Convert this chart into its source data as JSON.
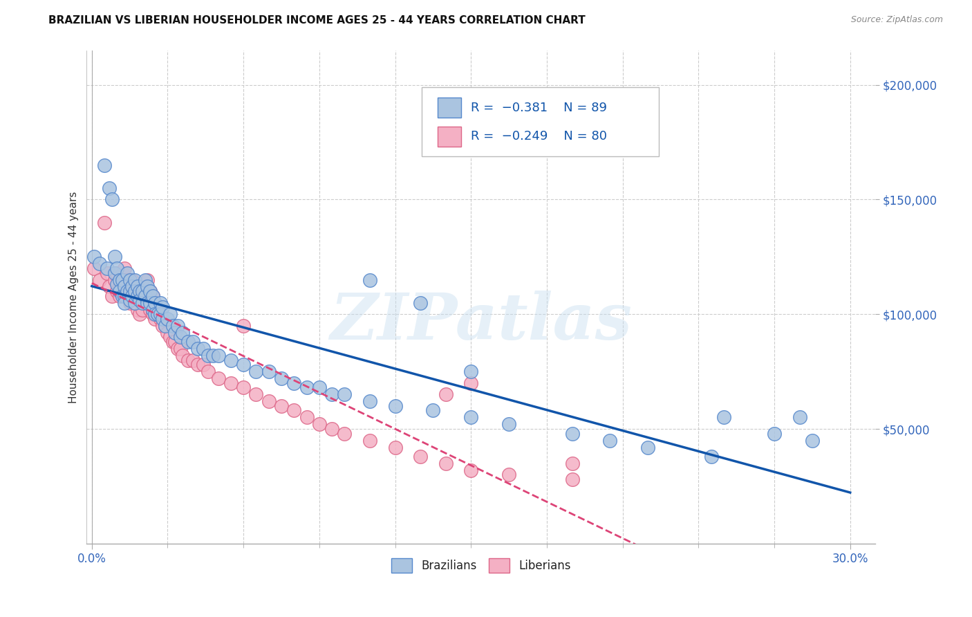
{
  "title": "BRAZILIAN VS LIBERIAN HOUSEHOLDER INCOME AGES 25 - 44 YEARS CORRELATION CHART",
  "source": "Source: ZipAtlas.com",
  "xlabel_major_ticks": [
    0.0,
    0.3
  ],
  "xlabel_major_labels": [
    "0.0%",
    "30.0%"
  ],
  "xlabel_minor_ticks": [
    0.03,
    0.06,
    0.09,
    0.12,
    0.15,
    0.18,
    0.21,
    0.24,
    0.27
  ],
  "ylabel": "Householder Income Ages 25 - 44 years",
  "ylabel_ticks_vals": [
    50000,
    100000,
    150000,
    200000
  ],
  "ylabel_ticks_labels": [
    "$50,000",
    "$100,000",
    "$150,000",
    "$200,000"
  ],
  "ylim": [
    0,
    215000
  ],
  "xlim": [
    -0.002,
    0.31
  ],
  "brazil_color": "#aac4e0",
  "brazil_edge": "#5588cc",
  "liberia_color": "#f4b0c4",
  "liberia_edge": "#dd6688",
  "brazil_line_color": "#1155aa",
  "liberia_line_color": "#dd4477",
  "legend_text_color": "#1155aa",
  "watermark": "ZIPatlas",
  "background_color": "#ffffff",
  "grid_color": "#cccccc",
  "brazil_scatter_x": [
    0.001,
    0.003,
    0.005,
    0.006,
    0.007,
    0.008,
    0.009,
    0.009,
    0.01,
    0.01,
    0.011,
    0.011,
    0.012,
    0.012,
    0.013,
    0.013,
    0.013,
    0.014,
    0.014,
    0.015,
    0.015,
    0.015,
    0.016,
    0.016,
    0.017,
    0.017,
    0.017,
    0.018,
    0.018,
    0.019,
    0.019,
    0.02,
    0.02,
    0.021,
    0.021,
    0.022,
    0.022,
    0.023,
    0.023,
    0.024,
    0.024,
    0.025,
    0.025,
    0.026,
    0.027,
    0.027,
    0.028,
    0.028,
    0.029,
    0.03,
    0.031,
    0.032,
    0.033,
    0.034,
    0.035,
    0.036,
    0.038,
    0.04,
    0.042,
    0.044,
    0.046,
    0.048,
    0.05,
    0.055,
    0.06,
    0.065,
    0.07,
    0.075,
    0.08,
    0.085,
    0.09,
    0.095,
    0.1,
    0.11,
    0.12,
    0.135,
    0.15,
    0.165,
    0.19,
    0.205,
    0.22,
    0.245,
    0.25,
    0.27,
    0.285,
    0.11,
    0.13,
    0.15,
    0.28
  ],
  "brazil_scatter_y": [
    125000,
    122000,
    165000,
    120000,
    155000,
    150000,
    125000,
    118000,
    120000,
    113000,
    115000,
    110000,
    115000,
    108000,
    112000,
    108000,
    105000,
    118000,
    110000,
    115000,
    110000,
    106000,
    112000,
    108000,
    115000,
    110000,
    105000,
    112000,
    108000,
    110000,
    106000,
    110000,
    105000,
    115000,
    108000,
    112000,
    105000,
    110000,
    105000,
    108000,
    102000,
    105000,
    100000,
    100000,
    105000,
    100000,
    98000,
    103000,
    95000,
    98000,
    100000,
    95000,
    92000,
    95000,
    90000,
    92000,
    88000,
    88000,
    85000,
    85000,
    82000,
    82000,
    82000,
    80000,
    78000,
    75000,
    75000,
    72000,
    70000,
    68000,
    68000,
    65000,
    65000,
    62000,
    60000,
    58000,
    55000,
    52000,
    48000,
    45000,
    42000,
    38000,
    55000,
    48000,
    45000,
    115000,
    105000,
    75000,
    55000
  ],
  "liberia_scatter_x": [
    0.001,
    0.003,
    0.005,
    0.006,
    0.007,
    0.008,
    0.009,
    0.01,
    0.01,
    0.011,
    0.011,
    0.012,
    0.012,
    0.013,
    0.013,
    0.014,
    0.014,
    0.015,
    0.015,
    0.016,
    0.016,
    0.017,
    0.017,
    0.018,
    0.018,
    0.019,
    0.019,
    0.02,
    0.02,
    0.021,
    0.021,
    0.022,
    0.022,
    0.023,
    0.023,
    0.024,
    0.024,
    0.025,
    0.025,
    0.026,
    0.027,
    0.027,
    0.028,
    0.028,
    0.029,
    0.03,
    0.031,
    0.032,
    0.033,
    0.034,
    0.035,
    0.036,
    0.038,
    0.04,
    0.042,
    0.044,
    0.046,
    0.05,
    0.055,
    0.06,
    0.065,
    0.07,
    0.075,
    0.08,
    0.085,
    0.09,
    0.095,
    0.1,
    0.11,
    0.12,
    0.13,
    0.14,
    0.15,
    0.165,
    0.19,
    0.14,
    0.06,
    0.15,
    0.19
  ],
  "liberia_scatter_y": [
    120000,
    115000,
    140000,
    118000,
    112000,
    108000,
    115000,
    118000,
    110000,
    112000,
    108000,
    118000,
    110000,
    120000,
    115000,
    115000,
    108000,
    112000,
    105000,
    115000,
    110000,
    112000,
    105000,
    110000,
    102000,
    108000,
    100000,
    108000,
    102000,
    112000,
    105000,
    115000,
    108000,
    110000,
    102000,
    108000,
    100000,
    105000,
    98000,
    100000,
    100000,
    98000,
    98000,
    95000,
    95000,
    92000,
    90000,
    88000,
    88000,
    85000,
    85000,
    82000,
    80000,
    80000,
    78000,
    78000,
    75000,
    72000,
    70000,
    68000,
    65000,
    62000,
    60000,
    58000,
    55000,
    52000,
    50000,
    48000,
    45000,
    42000,
    38000,
    35000,
    32000,
    30000,
    28000,
    65000,
    95000,
    70000,
    35000
  ],
  "brazil_trend_x_start": 0.0,
  "brazil_trend_x_end": 0.3,
  "liberia_trend_x_start": 0.0,
  "liberia_trend_x_end": 0.285
}
